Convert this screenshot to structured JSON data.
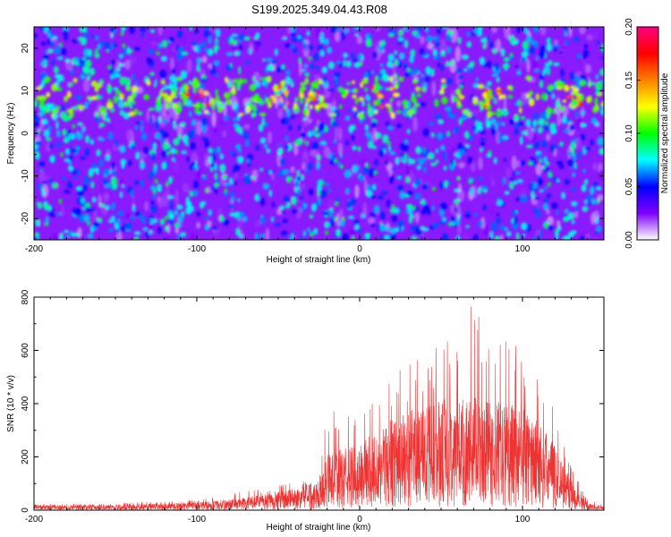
{
  "page": {
    "title": "S199.2025.349.04.43.R08"
  },
  "chart_data": [
    {
      "type": "heatmap",
      "title": "S199.2025.349.04.43.R08",
      "xlabel": "Height of straight line (km)",
      "ylabel": "Frequency (Hz)",
      "xlim": [
        -200,
        150
      ],
      "ylim": [
        -25,
        25
      ],
      "x_ticks": [
        "-200",
        "-100",
        "0",
        "100"
      ],
      "y_ticks": [
        "-20",
        "-10",
        "0",
        "10",
        "20"
      ],
      "colorbar": {
        "label": "Normalized spectral amplitude",
        "range": [
          0,
          0.2
        ],
        "ticks": [
          "0.00",
          "0.05",
          "0.10",
          "0.15",
          "0.20"
        ],
        "colormap": [
          "#ffffff",
          "#8000ff",
          "#0000ff",
          "#00ffff",
          "#00ff00",
          "#ffff00",
          "#ff8000",
          "#ff0000",
          "#ff0080"
        ]
      },
      "description_of_pattern": {
        "background_level": 0.05,
        "energy_band_frequency_hz": [
          6,
          11
        ],
        "peak_value": 0.2,
        "peak_heights_km": [
          -100,
          -50,
          -30,
          15,
          80,
          130
        ]
      }
    },
    {
      "type": "line",
      "xlabel": "Height of straight line (km)",
      "ylabel": "SNR (10 * v/v)",
      "xlim": [
        -200,
        150
      ],
      "ylim": [
        0,
        800
      ],
      "x_ticks": [
        "-200",
        "-100",
        "0",
        "100"
      ],
      "y_ticks": [
        "0",
        "200",
        "400",
        "600",
        "800"
      ],
      "line_color": "#ee3333",
      "envelope": {
        "x": [
          -200,
          -150,
          -100,
          -80,
          -60,
          -40,
          -25,
          -20,
          0,
          20,
          40,
          60,
          70,
          80,
          100,
          110,
          120,
          130,
          140,
          150
        ],
        "y_upper": [
          25,
          25,
          40,
          65,
          80,
          110,
          120,
          380,
          350,
          520,
          600,
          650,
          800,
          700,
          600,
          560,
          400,
          160,
          40,
          20
        ],
        "y_typical": [
          12,
          12,
          18,
          25,
          35,
          50,
          70,
          130,
          150,
          210,
          240,
          260,
          260,
          250,
          240,
          200,
          150,
          70,
          15,
          8
        ]
      }
    }
  ]
}
